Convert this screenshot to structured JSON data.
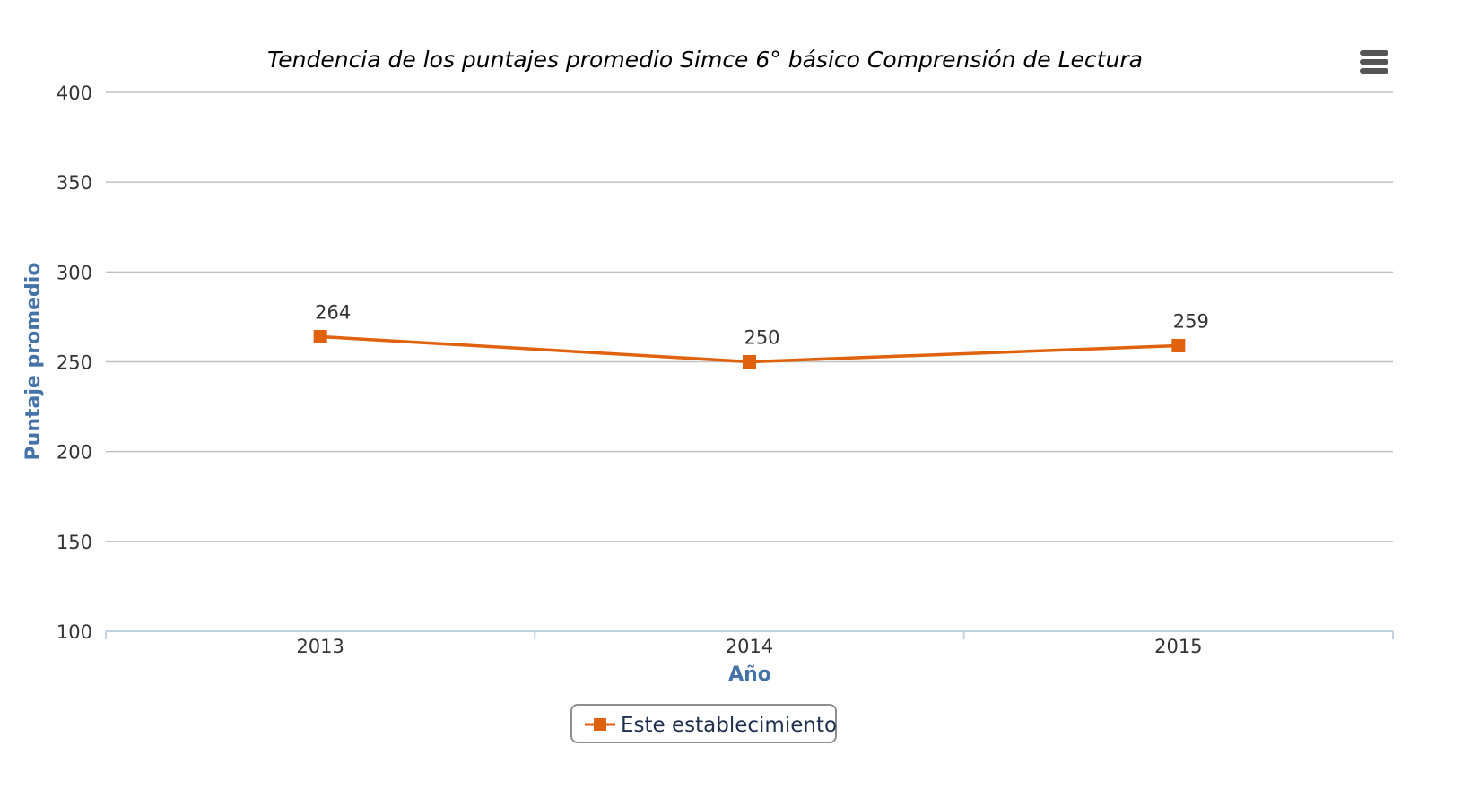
{
  "chart_data": {
    "type": "line",
    "title": "Tendencia de los puntajes promedio Simce 6° básico Comprensión de Lectura",
    "xlabel": "Año",
    "ylabel": "Puntaje promedio",
    "categories": [
      "2013",
      "2014",
      "2015"
    ],
    "ylim": [
      100,
      400
    ],
    "yticks": [
      100,
      150,
      200,
      250,
      300,
      350,
      400
    ],
    "grid": true,
    "legend_position": "bottom-center",
    "series": [
      {
        "name": "Este establecimiento",
        "values": [
          264,
          250,
          259
        ],
        "data_labels": [
          "264",
          "250",
          "259"
        ],
        "color": "#e0610e",
        "marker": "square"
      }
    ]
  },
  "colors": {
    "series": "#e0610e",
    "axis_title": "#4572a7",
    "grid": "#c0c0c0",
    "axis_line": "#c0d0e0",
    "tick_label": "#333333"
  },
  "icons": {
    "menu": "menu-icon"
  }
}
